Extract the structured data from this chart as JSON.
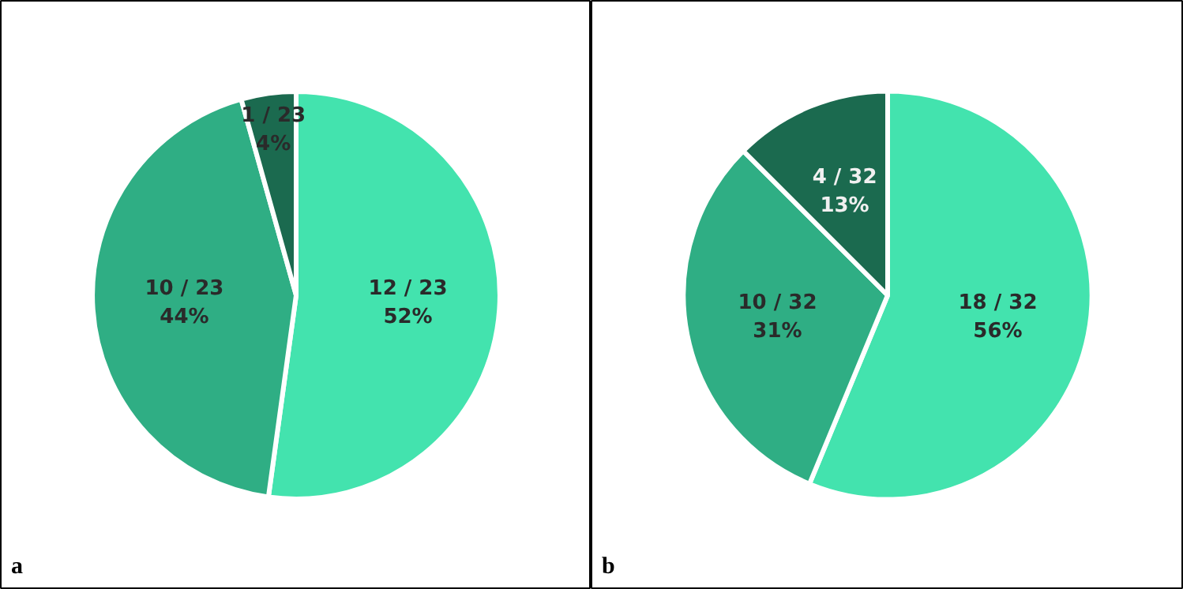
{
  "chart_data": [
    {
      "type": "pie",
      "categories": [
        null,
        null,
        null
      ],
      "values": [
        12,
        10,
        1
      ],
      "colors": [
        "#43e3ae",
        "#2fae84",
        "#1b6a4f"
      ],
      "value_labels": [
        "12 / 23\n52%",
        "10 / 23\n44%",
        "1 / 23\n4%"
      ],
      "annotations": [
        "a"
      ]
    },
    {
      "type": "pie",
      "categories": [
        null,
        null,
        null
      ],
      "values": [
        18,
        10,
        4
      ],
      "colors": [
        "#43e3ae",
        "#2fae84",
        "#1b6a4f"
      ],
      "value_labels": [
        "18 / 32\n56%",
        "10 / 32\n31%",
        "4 / 32\n13%"
      ],
      "annotations": [
        "b"
      ]
    }
  ]
}
